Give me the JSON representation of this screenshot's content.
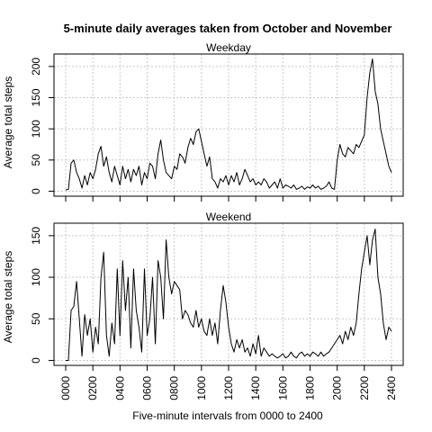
{
  "title": "5-minute daily averages taken from October and November",
  "xlabel": "Five-minute intervals from 0000 to 2400",
  "ylabel": "Average total steps",
  "colors": {
    "line": "#000000",
    "grid": "#c8c8c8"
  },
  "chart_data": {
    "type": "line",
    "xlim": [
      0,
      2400
    ],
    "x_ticks": [
      0,
      200,
      400,
      600,
      800,
      1000,
      1200,
      1400,
      1600,
      1800,
      2000,
      2200,
      2400
    ],
    "x_tick_labels": [
      "0000",
      "0200",
      "0400",
      "0600",
      "0800",
      "1000",
      "1200",
      "1400",
      "1600",
      "1800",
      "2000",
      "2200",
      "2400"
    ],
    "grid": true,
    "panels": [
      {
        "name": "Weekday",
        "ylim": [
          -8,
          220
        ],
        "y_ticks": [
          0,
          50,
          100,
          150,
          200
        ],
        "x": [
          0,
          20,
          40,
          60,
          80,
          100,
          120,
          140,
          160,
          180,
          200,
          220,
          240,
          260,
          280,
          300,
          320,
          340,
          360,
          380,
          400,
          420,
          440,
          460,
          480,
          500,
          520,
          540,
          560,
          580,
          600,
          620,
          640,
          660,
          680,
          700,
          720,
          740,
          760,
          780,
          800,
          820,
          840,
          860,
          880,
          900,
          920,
          940,
          960,
          980,
          1000,
          1020,
          1040,
          1060,
          1080,
          1100,
          1120,
          1140,
          1160,
          1180,
          1200,
          1220,
          1240,
          1260,
          1280,
          1300,
          1320,
          1340,
          1360,
          1380,
          1400,
          1420,
          1440,
          1460,
          1480,
          1500,
          1520,
          1540,
          1560,
          1580,
          1600,
          1620,
          1640,
          1660,
          1680,
          1700,
          1720,
          1740,
          1760,
          1780,
          1800,
          1820,
          1840,
          1860,
          1880,
          1900,
          1920,
          1940,
          1960,
          1980,
          2000,
          2020,
          2040,
          2060,
          2080,
          2100,
          2120,
          2140,
          2160,
          2180,
          2200,
          2220,
          2240,
          2260,
          2280,
          2300,
          2320,
          2340,
          2360,
          2380,
          2400
        ],
        "values": [
          2,
          3,
          45,
          50,
          30,
          20,
          5,
          25,
          10,
          30,
          20,
          35,
          60,
          72,
          40,
          55,
          30,
          15,
          40,
          25,
          10,
          40,
          20,
          35,
          15,
          35,
          25,
          40,
          10,
          30,
          20,
          45,
          40,
          20,
          60,
          82,
          50,
          30,
          25,
          20,
          40,
          35,
          60,
          55,
          45,
          70,
          85,
          75,
          95,
          100,
          80,
          60,
          40,
          55,
          20,
          15,
          5,
          20,
          15,
          25,
          10,
          25,
          15,
          30,
          10,
          20,
          35,
          25,
          15,
          20,
          10,
          15,
          10,
          20,
          15,
          5,
          10,
          15,
          5,
          20,
          5,
          10,
          8,
          5,
          10,
          3,
          5,
          8,
          3,
          7,
          5,
          10,
          5,
          8,
          3,
          5,
          8,
          15,
          5,
          3,
          50,
          75,
          60,
          55,
          70,
          65,
          60,
          75,
          70,
          80,
          90,
          150,
          190,
          212,
          160,
          140,
          100,
          80,
          60,
          40,
          30
        ],
        "title": "Weekday"
      },
      {
        "name": "Weekend",
        "ylim": [
          -6,
          165
        ],
        "y_ticks": [
          0,
          50,
          100,
          150
        ],
        "x": [
          0,
          20,
          40,
          60,
          80,
          100,
          120,
          140,
          160,
          180,
          200,
          220,
          240,
          260,
          280,
          300,
          320,
          340,
          360,
          380,
          400,
          420,
          440,
          460,
          480,
          500,
          520,
          540,
          560,
          580,
          600,
          620,
          640,
          660,
          680,
          700,
          720,
          740,
          760,
          780,
          800,
          820,
          840,
          860,
          880,
          900,
          920,
          940,
          960,
          980,
          1000,
          1020,
          1040,
          1060,
          1080,
          1100,
          1120,
          1140,
          1160,
          1180,
          1200,
          1220,
          1240,
          1260,
          1280,
          1300,
          1320,
          1340,
          1360,
          1380,
          1400,
          1420,
          1440,
          1460,
          1480,
          1500,
          1520,
          1540,
          1560,
          1580,
          1600,
          1620,
          1640,
          1660,
          1680,
          1700,
          1720,
          1740,
          1760,
          1780,
          1800,
          1820,
          1840,
          1860,
          1880,
          1900,
          1920,
          1940,
          1960,
          1980,
          2000,
          2020,
          2040,
          2060,
          2080,
          2100,
          2120,
          2140,
          2160,
          2180,
          2200,
          2220,
          2240,
          2260,
          2280,
          2300,
          2320,
          2340,
          2360,
          2380,
          2400
        ],
        "values": [
          0,
          0,
          60,
          65,
          95,
          50,
          5,
          55,
          30,
          50,
          10,
          40,
          20,
          100,
          130,
          30,
          5,
          45,
          20,
          110,
          30,
          120,
          60,
          100,
          15,
          110,
          60,
          40,
          10,
          110,
          30,
          50,
          100,
          20,
          120,
          100,
          50,
          145,
          100,
          80,
          95,
          90,
          85,
          50,
          60,
          55,
          45,
          40,
          60,
          40,
          50,
          35,
          30,
          50,
          30,
          45,
          20,
          60,
          90,
          70,
          40,
          20,
          10,
          25,
          15,
          25,
          10,
          15,
          5,
          20,
          8,
          30,
          5,
          15,
          10,
          5,
          8,
          5,
          3,
          5,
          8,
          3,
          5,
          10,
          5,
          3,
          8,
          10,
          5,
          8,
          5,
          10,
          8,
          5,
          10,
          5,
          8,
          10,
          15,
          20,
          25,
          30,
          20,
          35,
          25,
          40,
          30,
          45,
          80,
          110,
          130,
          150,
          115,
          145,
          158,
          100,
          80,
          45,
          25,
          40,
          35
        ],
        "title": "Weekend"
      }
    ]
  }
}
